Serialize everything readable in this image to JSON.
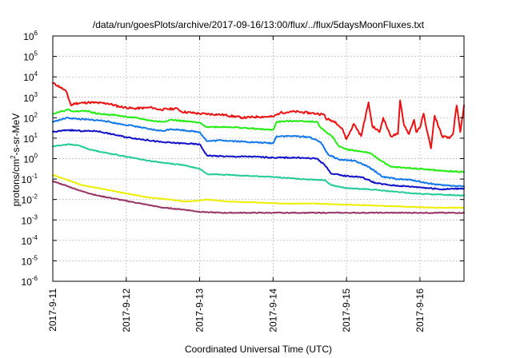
{
  "chart_data": {
    "type": "line",
    "title": "/data/run/goesPlots/archive/2017-09-16/13:00/flux/../flux/5daysMoonFluxes.txt",
    "xlabel": "Coordinated Universal Time (UTC)",
    "ylabel": {
      "base": "protons/cm",
      "sup": "2",
      "rest": "-s-sr-MeV"
    },
    "xlim": [
      0,
      5.6
    ],
    "ylim_log10": [
      -6,
      6
    ],
    "yscale": "log",
    "grid": true,
    "legend": "none",
    "x_ticks": [
      {
        "value": 0,
        "label": "2017-9-11"
      },
      {
        "value": 1,
        "label": "2017-9-12"
      },
      {
        "value": 2,
        "label": "2017-9-13"
      },
      {
        "value": 3,
        "label": "2017-9-14"
      },
      {
        "value": 4,
        "label": "2017-9-15"
      },
      {
        "value": 5,
        "label": "2017-9-16"
      }
    ],
    "y_ticks": [
      {
        "exp": -6,
        "base": "10",
        "sup": "-6"
      },
      {
        "exp": -5,
        "base": "10",
        "sup": "-5"
      },
      {
        "exp": -4,
        "base": "10",
        "sup": "-4"
      },
      {
        "exp": -3,
        "base": "10",
        "sup": "-3"
      },
      {
        "exp": -2,
        "base": "10",
        "sup": "-2"
      },
      {
        "exp": -1,
        "base": "10",
        "sup": "-1"
      },
      {
        "exp": 0,
        "base": "10",
        "sup": "0"
      },
      {
        "exp": 1,
        "base": "10",
        "sup": "1"
      },
      {
        "exp": 2,
        "base": "10",
        "sup": "2"
      },
      {
        "exp": 3,
        "base": "10",
        "sup": "3"
      },
      {
        "exp": 4,
        "base": "10",
        "sup": "4"
      },
      {
        "exp": 5,
        "base": "10",
        "sup": "5"
      },
      {
        "exp": 6,
        "base": "10",
        "sup": "6"
      }
    ],
    "series": [
      {
        "color": "#ee1111",
        "noise": 0.05,
        "seed": 11,
        "points": [
          [
            0,
            3.7
          ],
          [
            0.1,
            3.5
          ],
          [
            0.18,
            3.3
          ],
          [
            0.25,
            2.6
          ],
          [
            0.3,
            2.7
          ],
          [
            0.5,
            2.75
          ],
          [
            0.75,
            2.7
          ],
          [
            0.9,
            2.55
          ],
          [
            1.1,
            2.45
          ],
          [
            1.35,
            2.5
          ],
          [
            1.45,
            2.4
          ],
          [
            1.7,
            2.45
          ],
          [
            1.75,
            2.3
          ],
          [
            2.0,
            2.2
          ],
          [
            2.3,
            2.15
          ],
          [
            2.6,
            2.0
          ],
          [
            2.8,
            2.05
          ],
          [
            3.0,
            2.05
          ],
          [
            3.1,
            2.25
          ],
          [
            3.3,
            2.3
          ],
          [
            3.6,
            2.2
          ],
          [
            3.7,
            2.15
          ],
          [
            3.72,
            1.95
          ],
          [
            3.85,
            1.8
          ],
          [
            3.95,
            1.4
          ],
          [
            4.0,
            0.95
          ],
          [
            4.1,
            1.7
          ],
          [
            4.2,
            1.1
          ],
          [
            4.3,
            2.75
          ],
          [
            4.35,
            1.6
          ],
          [
            4.45,
            1.3
          ],
          [
            4.5,
            2.0
          ],
          [
            4.6,
            1.1
          ],
          [
            4.7,
            1.2
          ],
          [
            4.73,
            2.85
          ],
          [
            4.78,
            1.7
          ],
          [
            4.85,
            1.2
          ],
          [
            4.92,
            1.9
          ],
          [
            4.95,
            1.3
          ],
          [
            5.0,
            1.5
          ],
          [
            5.05,
            2.2
          ],
          [
            5.1,
            1.3
          ],
          [
            5.15,
            0.5
          ],
          [
            5.2,
            2.1
          ],
          [
            5.3,
            1.1
          ],
          [
            5.4,
            1.0
          ],
          [
            5.45,
            1.2
          ],
          [
            5.5,
            2.6
          ],
          [
            5.55,
            1.3
          ],
          [
            5.6,
            2.6
          ]
        ]
      },
      {
        "color": "#22ee11",
        "noise": 0.03,
        "seed": 22,
        "points": [
          [
            0,
            2.2
          ],
          [
            0.1,
            2.3
          ],
          [
            0.2,
            2.4
          ],
          [
            0.3,
            2.3
          ],
          [
            0.45,
            2.35
          ],
          [
            0.6,
            2.2
          ],
          [
            0.8,
            2.15
          ],
          [
            1.0,
            2.05
          ],
          [
            1.2,
            1.95
          ],
          [
            1.35,
            1.85
          ],
          [
            1.5,
            1.8
          ],
          [
            1.6,
            1.9
          ],
          [
            1.75,
            1.85
          ],
          [
            2.0,
            1.75
          ],
          [
            2.1,
            1.55
          ],
          [
            2.4,
            1.55
          ],
          [
            2.6,
            1.5
          ],
          [
            2.8,
            1.45
          ],
          [
            3.0,
            1.4
          ],
          [
            3.05,
            1.8
          ],
          [
            3.3,
            1.85
          ],
          [
            3.6,
            1.8
          ],
          [
            3.65,
            1.5
          ],
          [
            3.8,
            1.1
          ],
          [
            3.9,
            0.6
          ],
          [
            4.0,
            0.45
          ],
          [
            4.3,
            0.3
          ],
          [
            4.6,
            -0.4
          ],
          [
            4.8,
            -0.45
          ],
          [
            5.0,
            -0.5
          ],
          [
            5.3,
            -0.6
          ],
          [
            5.6,
            -0.65
          ]
        ]
      },
      {
        "color": "#1177ee",
        "noise": 0.03,
        "seed": 33,
        "points": [
          [
            0,
            1.8
          ],
          [
            0.1,
            1.9
          ],
          [
            0.2,
            2.0
          ],
          [
            0.3,
            1.95
          ],
          [
            0.5,
            1.9
          ],
          [
            0.7,
            1.85
          ],
          [
            0.9,
            1.7
          ],
          [
            1.1,
            1.6
          ],
          [
            1.3,
            1.45
          ],
          [
            1.5,
            1.35
          ],
          [
            1.6,
            1.45
          ],
          [
            1.75,
            1.4
          ],
          [
            2.0,
            1.3
          ],
          [
            2.1,
            0.85
          ],
          [
            2.3,
            0.9
          ],
          [
            2.5,
            0.85
          ],
          [
            2.75,
            0.8
          ],
          [
            3.0,
            0.75
          ],
          [
            3.05,
            1.1
          ],
          [
            3.3,
            1.1
          ],
          [
            3.5,
            1.05
          ],
          [
            3.65,
            0.8
          ],
          [
            3.75,
            0.2
          ],
          [
            3.9,
            -0.05
          ],
          [
            4.1,
            -0.1
          ],
          [
            4.3,
            -0.4
          ],
          [
            4.5,
            -0.9
          ],
          [
            4.7,
            -1.0
          ],
          [
            4.9,
            -1.05
          ],
          [
            5.1,
            -1.2
          ],
          [
            5.3,
            -1.3
          ],
          [
            5.6,
            -1.35
          ]
        ]
      },
      {
        "color": "#1111cc",
        "noise": 0.03,
        "seed": 44,
        "points": [
          [
            0,
            1.3
          ],
          [
            0.2,
            1.4
          ],
          [
            0.4,
            1.35
          ],
          [
            0.6,
            1.35
          ],
          [
            0.8,
            1.2
          ],
          [
            1.0,
            1.05
          ],
          [
            1.3,
            0.9
          ],
          [
            1.5,
            0.8
          ],
          [
            1.75,
            0.75
          ],
          [
            2.0,
            0.7
          ],
          [
            2.1,
            0.15
          ],
          [
            2.4,
            0.1
          ],
          [
            2.7,
            0.1
          ],
          [
            3.0,
            0.05
          ],
          [
            3.3,
            0.05
          ],
          [
            3.6,
            0.0
          ],
          [
            3.7,
            -0.3
          ],
          [
            3.8,
            -0.75
          ],
          [
            4.0,
            -0.85
          ],
          [
            4.2,
            -0.9
          ],
          [
            4.4,
            -1.2
          ],
          [
            4.6,
            -1.3
          ],
          [
            4.8,
            -1.35
          ],
          [
            5.0,
            -1.4
          ],
          [
            5.3,
            -1.5
          ],
          [
            5.6,
            -1.45
          ]
        ]
      },
      {
        "color": "#22cc99",
        "noise": 0.02,
        "seed": 55,
        "points": [
          [
            0,
            0.6
          ],
          [
            0.2,
            0.7
          ],
          [
            0.35,
            0.65
          ],
          [
            0.5,
            0.45
          ],
          [
            0.7,
            0.3
          ],
          [
            1.0,
            0.1
          ],
          [
            1.3,
            -0.1
          ],
          [
            1.5,
            -0.2
          ],
          [
            1.75,
            -0.3
          ],
          [
            2.0,
            -0.5
          ],
          [
            2.1,
            -0.75
          ],
          [
            2.4,
            -0.8
          ],
          [
            2.7,
            -0.85
          ],
          [
            3.0,
            -0.9
          ],
          [
            3.4,
            -1.0
          ],
          [
            3.7,
            -1.05
          ],
          [
            3.8,
            -1.3
          ],
          [
            4.0,
            -1.45
          ],
          [
            4.3,
            -1.5
          ],
          [
            4.6,
            -1.6
          ],
          [
            4.9,
            -1.7
          ],
          [
            5.2,
            -1.75
          ],
          [
            5.6,
            -1.8
          ]
        ]
      },
      {
        "color": "#eeee00",
        "noise": 0.015,
        "seed": 66,
        "points": [
          [
            0,
            -0.8
          ],
          [
            0.2,
            -1.05
          ],
          [
            0.4,
            -1.3
          ],
          [
            0.7,
            -1.5
          ],
          [
            1.0,
            -1.7
          ],
          [
            1.3,
            -1.9
          ],
          [
            1.6,
            -2.0
          ],
          [
            1.8,
            -2.1
          ],
          [
            2.0,
            -2.05
          ],
          [
            2.1,
            -2.0
          ],
          [
            2.4,
            -2.1
          ],
          [
            2.8,
            -2.15
          ],
          [
            3.2,
            -2.2
          ],
          [
            3.6,
            -2.2
          ],
          [
            4.0,
            -2.25
          ],
          [
            4.4,
            -2.3
          ],
          [
            4.8,
            -2.35
          ],
          [
            5.2,
            -2.4
          ],
          [
            5.6,
            -2.4
          ]
        ]
      },
      {
        "color": "#993366",
        "noise": 0.02,
        "seed": 77,
        "points": [
          [
            0,
            -1.1
          ],
          [
            0.2,
            -1.35
          ],
          [
            0.4,
            -1.6
          ],
          [
            0.6,
            -1.8
          ],
          [
            0.9,
            -2.0
          ],
          [
            1.2,
            -2.2
          ],
          [
            1.5,
            -2.4
          ],
          [
            1.8,
            -2.5
          ],
          [
            2.0,
            -2.6
          ],
          [
            2.3,
            -2.65
          ],
          [
            2.6,
            -2.65
          ],
          [
            3.0,
            -2.65
          ],
          [
            3.4,
            -2.65
          ],
          [
            3.8,
            -2.65
          ],
          [
            4.2,
            -2.65
          ],
          [
            4.6,
            -2.65
          ],
          [
            5.0,
            -2.65
          ],
          [
            5.6,
            -2.65
          ]
        ]
      }
    ]
  }
}
